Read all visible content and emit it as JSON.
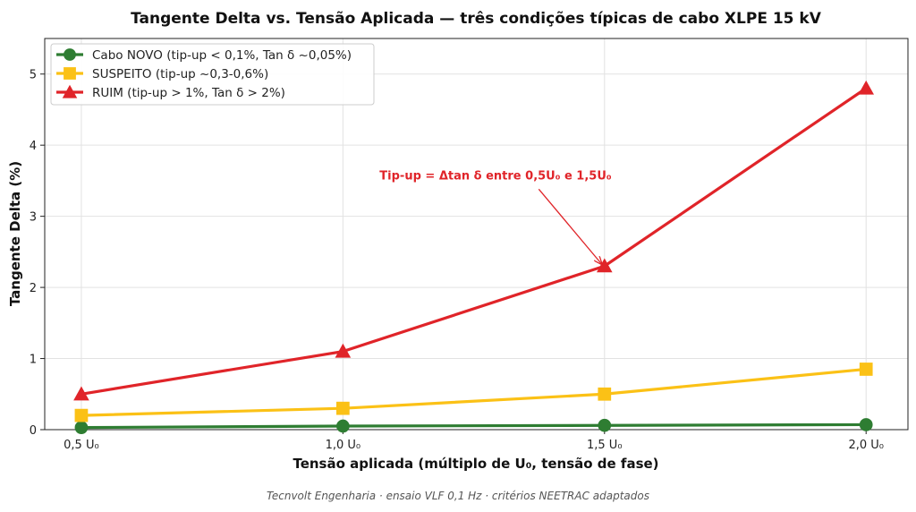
{
  "chart_data": {
    "type": "line",
    "title": "Tangente Delta vs. Tensão Aplicada — três condições típicas de cabo XLPE 15 kV",
    "xlabel": "Tensão aplicada (múltiplo de U₀, tensão de fase)",
    "ylabel": "Tangente Delta (%)",
    "categories": [
      "0,5 U₀",
      "1,0 U₀",
      "1,5 U₀",
      "2,0 U₀"
    ],
    "x": [
      0.5,
      1.0,
      1.5,
      2.0
    ],
    "xlim": [
      0.43,
      2.08
    ],
    "ylim": [
      0,
      5.5
    ],
    "yticks": [
      0,
      1,
      2,
      3,
      4,
      5
    ],
    "grid": true,
    "legend_position": "upper-left",
    "series": [
      {
        "name": "Cabo NOVO (tip-up < 0,1%, Tan δ ~0,05%)",
        "values": [
          0.03,
          0.05,
          0.06,
          0.07
        ],
        "color": "#2e7d32",
        "marker": "circle"
      },
      {
        "name": "SUSPEITO (tip-up ~0,3-0,6%)",
        "values": [
          0.2,
          0.3,
          0.5,
          0.85
        ],
        "color": "#fbc116",
        "marker": "square"
      },
      {
        "name": "RUIM (tip-up > 1%, Tan δ > 2%)",
        "values": [
          0.5,
          1.1,
          2.3,
          4.8
        ],
        "color": "#e02429",
        "marker": "triangle"
      }
    ],
    "annotation": {
      "text": "Tip-up = Δtan δ entre 0,5U₀ e 1,5U₀",
      "color": "#e02429",
      "text_x": 1.07,
      "text_y": 3.52,
      "arrow_x": 1.5,
      "arrow_y": 2.3
    }
  },
  "footer": "Tecnvolt Engenharia · ensaio VLF 0,1 Hz · critérios NEETRAC adaptados"
}
